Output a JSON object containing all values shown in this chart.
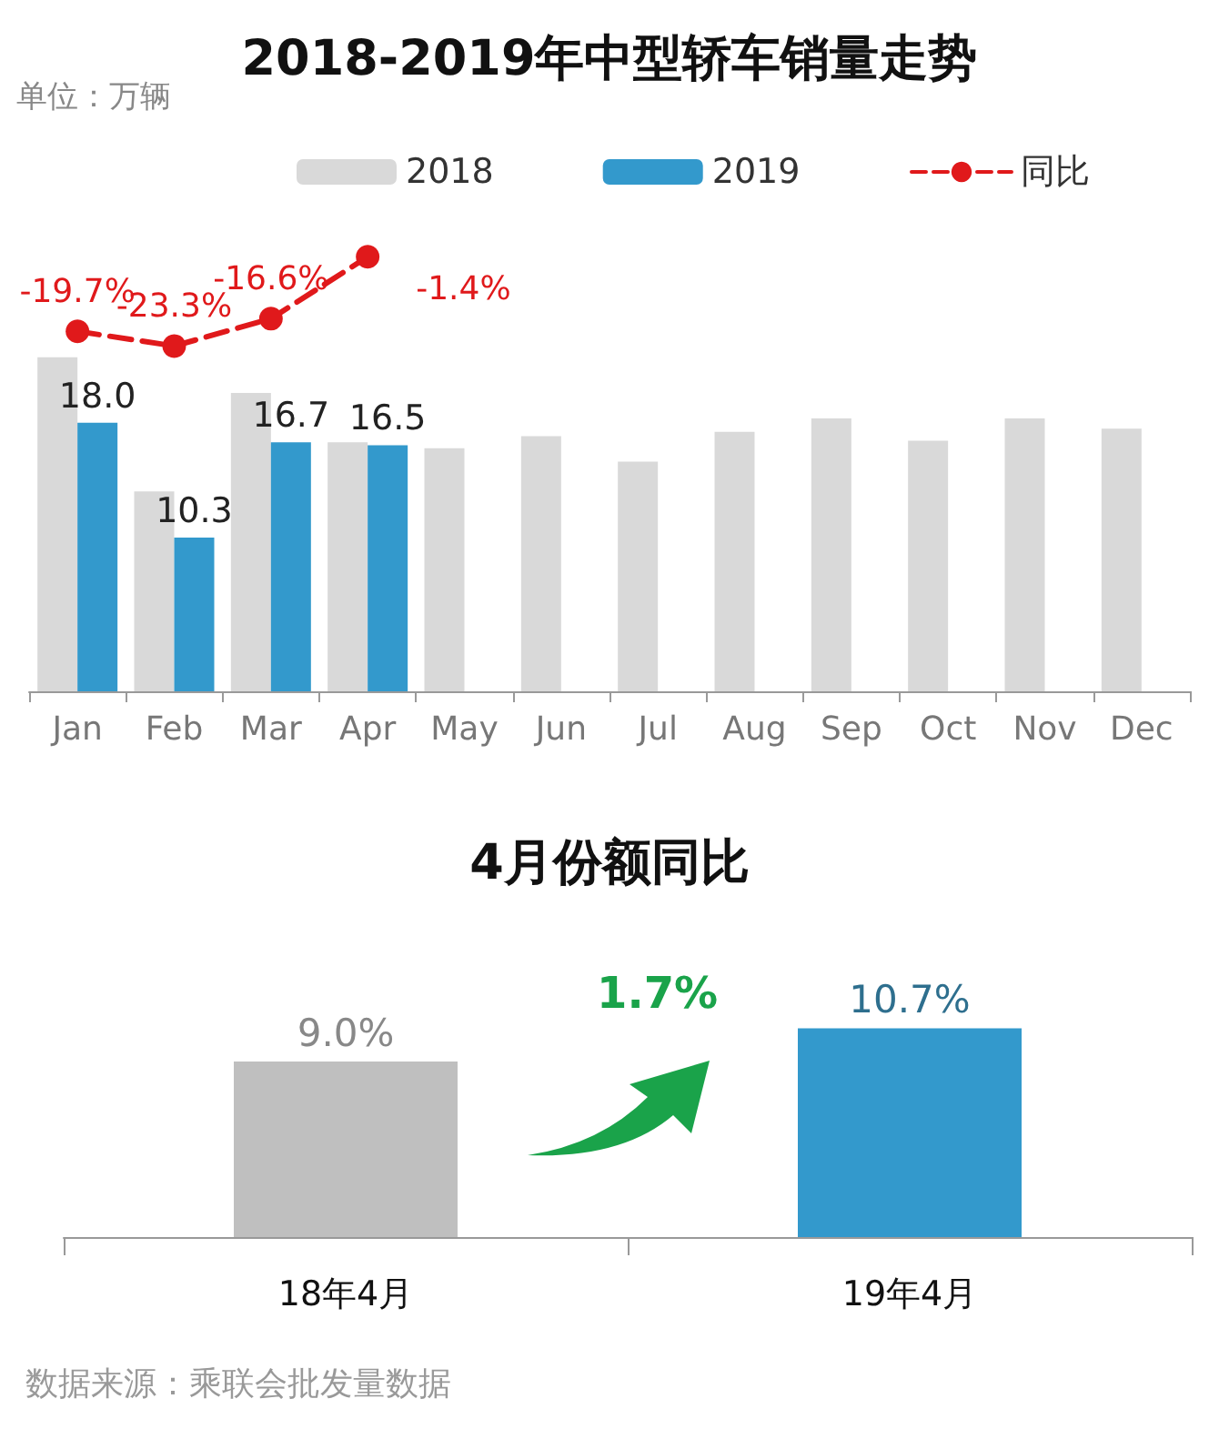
{
  "chart_data": [
    {
      "type": "line",
      "title": "2018-2019年中型轿车销量走势",
      "legend": "top right",
      "line_style": "dashed",
      "marker": "circle",
      "categories": [
        null,
        null,
        null,
        null,
        null,
        null,
        null,
        null,
        null,
        null,
        null,
        null
      ],
      "series": [
        {
          "name": "同比",
          "color": "#e0191b",
          "values": [
            -19.7,
            -23.3,
            -16.6,
            -1.4,
            null,
            null,
            null,
            null,
            null,
            null,
            null,
            null
          ],
          "value_labels": [
            "-19.7%",
            "-23.3%",
            "-16.6%",
            "-1.4%",
            null,
            null,
            null,
            null,
            null,
            null,
            null,
            null
          ]
        }
      ]
    },
    {
      "type": "bar",
      "ylabel": "单位：万辆",
      "legend": "top",
      "categories": [
        "Jan",
        "Feb",
        "Mar",
        "Apr",
        "May",
        "Jun",
        "Jul",
        "Aug",
        "Sep",
        "Oct",
        "Nov",
        "Dec"
      ],
      "series": [
        {
          "name": "2018",
          "color": "#d9d9d9",
          "values": [
            22.4,
            13.4,
            20.0,
            16.7,
            16.3,
            17.1,
            15.4,
            17.4,
            18.3,
            16.8,
            18.3,
            17.6
          ]
        },
        {
          "name": "2019",
          "color": "#3399cc",
          "values": [
            18.0,
            10.3,
            16.7,
            16.5,
            null,
            null,
            null,
            null,
            null,
            null,
            null,
            null
          ],
          "value_labels": [
            "18.0",
            "10.3",
            "16.7",
            "16.5",
            null,
            null,
            null,
            null,
            null,
            null,
            null,
            null
          ]
        }
      ]
    },
    {
      "type": "bar",
      "title": "4月份额同比",
      "categories": [
        "18年4月",
        "19年4月"
      ],
      "values": [
        9.0,
        10.7
      ],
      "colors": [
        "#bfbfbf",
        "#3399cc"
      ],
      "value_labels": [
        "9.0%",
        "10.7%"
      ],
      "annotations": [
        "1.7%",
        "数据来源：乘联会批发量数据"
      ]
    }
  ]
}
